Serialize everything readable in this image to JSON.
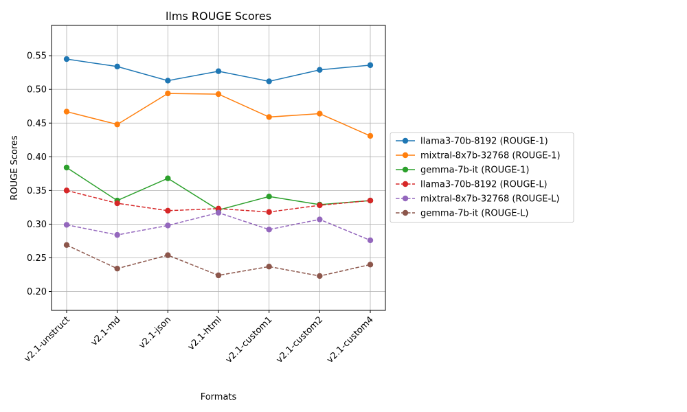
{
  "chart_data": {
    "type": "line",
    "title": "llms ROUGE Scores",
    "xlabel": "Formats",
    "ylabel": "ROUGE Scores",
    "categories": [
      "v2.1-unstruct",
      "v2.1-md",
      "v2.1-json",
      "v2.1-html",
      "v2.1-custom1",
      "v2.1-custom2",
      "v2.1-custom4"
    ],
    "ylim": [
      0.172,
      0.595
    ],
    "yticks": [
      "0.20",
      "0.25",
      "0.30",
      "0.35",
      "0.40",
      "0.45",
      "0.50",
      "0.55"
    ],
    "grid": true,
    "legend_position": "right-outside",
    "series": [
      {
        "name": "llama3-70b-8192 (ROUGE-1)",
        "color": "#1f77b4",
        "dashed": false,
        "values": [
          0.545,
          0.534,
          0.513,
          0.527,
          0.512,
          0.529,
          0.536
        ]
      },
      {
        "name": "mixtral-8x7b-32768 (ROUGE-1)",
        "color": "#ff7f0e",
        "dashed": false,
        "values": [
          0.467,
          0.448,
          0.494,
          0.493,
          0.459,
          0.464,
          0.431
        ]
      },
      {
        "name": "gemma-7b-it (ROUGE-1)",
        "color": "#2ca02c",
        "dashed": false,
        "values": [
          0.384,
          0.335,
          0.368,
          0.321,
          0.341,
          0.329,
          0.335
        ]
      },
      {
        "name": "llama3-70b-8192 (ROUGE-L)",
        "color": "#d62728",
        "dashed": true,
        "values": [
          0.35,
          0.331,
          0.32,
          0.323,
          0.318,
          0.328,
          0.335
        ]
      },
      {
        "name": "mixtral-8x7b-32768 (ROUGE-L)",
        "color": "#9467bd",
        "dashed": true,
        "values": [
          0.299,
          0.284,
          0.298,
          0.317,
          0.292,
          0.307,
          0.276
        ]
      },
      {
        "name": "gemma-7b-it (ROUGE-L)",
        "color": "#8c564b",
        "dashed": true,
        "values": [
          0.269,
          0.234,
          0.254,
          0.224,
          0.237,
          0.223,
          0.24
        ]
      }
    ]
  }
}
